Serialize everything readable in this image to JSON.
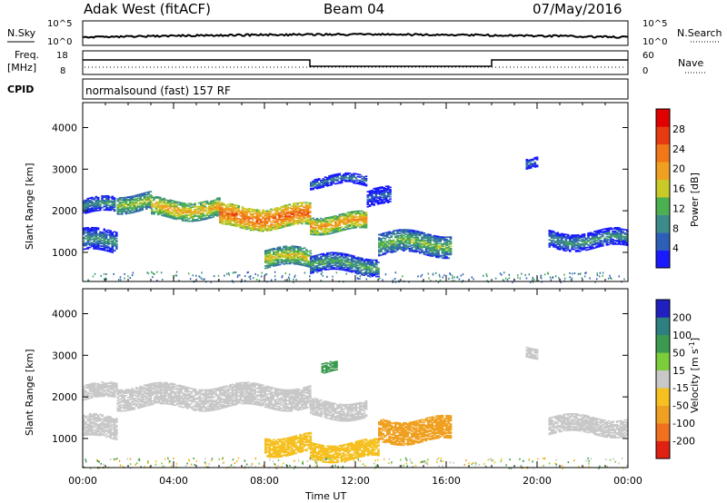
{
  "header": {
    "site": "Adak West (fitACF)",
    "beam": "Beam 04",
    "date": "07/May/2016"
  },
  "panel_labels": {
    "nsky": "N.Sky",
    "nsearch": "N.Search",
    "freq_line1": "Freq.",
    "freq_line2": "[MHz]",
    "nave": "Nave",
    "cpid": "CPID",
    "cpid_text": "normalsound (fast) 157 RF"
  },
  "noise_axis": {
    "left_ticks": [
      "10^5",
      "10^0"
    ],
    "right_ticks": [
      "10^5",
      "10^0"
    ]
  },
  "freq_axis": {
    "left_ticks": [
      "18",
      "8"
    ],
    "right_ticks": [
      "60",
      "0"
    ]
  },
  "chart_data": [
    {
      "type": "heatmap",
      "name": "power",
      "ylabel": "Slant Range [km]",
      "y_ticks": [
        1000,
        2000,
        3000,
        4000
      ],
      "ylim": [
        300,
        4600
      ],
      "x_ticks": [
        "00:00",
        "04:00",
        "08:00",
        "12:00",
        "16:00",
        "20:00",
        "00:00"
      ],
      "xlim_hours": [
        0,
        24
      ],
      "colorbar": {
        "label": "Power [dB]",
        "ticks": [
          "4",
          "8",
          "12",
          "16",
          "20",
          "24",
          "28"
        ],
        "colors": [
          "#1a1aff",
          "#2e5fb8",
          "#3c8a8a",
          "#4caf50",
          "#c9c928",
          "#f0a020",
          "#f07818",
          "#e83a10",
          "#e00000"
        ]
      },
      "bands": [
        {
          "t0": 0.0,
          "t1": 1.4,
          "r_center": 2100,
          "width": 180,
          "value": 10
        },
        {
          "t0": 0.0,
          "t1": 1.5,
          "r_center": 1250,
          "width": 260,
          "value": 10
        },
        {
          "t0": 1.5,
          "t1": 3.0,
          "r_center": 2200,
          "width": 200,
          "value": 16
        },
        {
          "t0": 3.0,
          "t1": 6.0,
          "r_center": 2050,
          "width": 220,
          "value": 20
        },
        {
          "t0": 6.0,
          "t1": 10.0,
          "r_center": 1850,
          "width": 260,
          "value": 26
        },
        {
          "t0": 8.0,
          "t1": 10.0,
          "r_center": 850,
          "width": 220,
          "value": 18
        },
        {
          "t0": 10.0,
          "t1": 12.5,
          "r_center": 1700,
          "width": 200,
          "value": 22
        },
        {
          "t0": 10.0,
          "t1": 12.5,
          "r_center": 2700,
          "width": 120,
          "value": 8
        },
        {
          "t0": 10.0,
          "t1": 13.0,
          "r_center": 700,
          "width": 200,
          "value": 12
        },
        {
          "t0": 13.0,
          "t1": 16.2,
          "r_center": 1200,
          "width": 260,
          "value": 14
        },
        {
          "t0": 12.5,
          "t1": 13.5,
          "r_center": 2300,
          "width": 200,
          "value": 6
        },
        {
          "t0": 19.5,
          "t1": 20.0,
          "r_center": 3100,
          "width": 120,
          "value": 8
        },
        {
          "t0": 20.5,
          "t1": 24.0,
          "r_center": 1300,
          "width": 200,
          "value": 10
        }
      ]
    },
    {
      "type": "heatmap",
      "name": "velocity",
      "ylabel": "Slant Range [km]",
      "y_ticks": [
        1000,
        2000,
        3000,
        4000
      ],
      "ylim": [
        300,
        4600
      ],
      "x_ticks": [
        "00:00",
        "04:00",
        "08:00",
        "12:00",
        "16:00",
        "20:00",
        "00:00"
      ],
      "xlabel": "Time UT",
      "xlim_hours": [
        0,
        24
      ],
      "colorbar": {
        "label": "Velocity [m s^-1]",
        "ticks": [
          "200",
          "100",
          "50",
          "15",
          "-15",
          "-50",
          "-100",
          "-200"
        ],
        "colors": [
          "#2020c0",
          "#2e7f7f",
          "#3c9a50",
          "#7ccd3c",
          "#c8c8c8",
          "#f5c020",
          "#f0a020",
          "#f07020",
          "#e02010"
        ]
      },
      "bands": [
        {
          "t0": 0.0,
          "t1": 1.5,
          "r_center": 2100,
          "width": 180,
          "value": 0
        },
        {
          "t0": 0.0,
          "t1": 1.5,
          "r_center": 1250,
          "width": 260,
          "value": 0
        },
        {
          "t0": 1.5,
          "t1": 10.0,
          "r_center": 2000,
          "width": 260,
          "value": 0
        },
        {
          "t0": 8.0,
          "t1": 10.0,
          "r_center": 850,
          "width": 220,
          "value": -40
        },
        {
          "t0": 10.0,
          "t1": 12.5,
          "r_center": 1700,
          "width": 200,
          "value": 0
        },
        {
          "t0": 10.0,
          "t1": 13.0,
          "r_center": 700,
          "width": 200,
          "value": -30
        },
        {
          "t0": 13.0,
          "t1": 16.2,
          "r_center": 1200,
          "width": 280,
          "value": -80
        },
        {
          "t0": 10.5,
          "t1": 11.2,
          "r_center": 2700,
          "width": 120,
          "value": 40
        },
        {
          "t0": 19.5,
          "t1": 20.0,
          "r_center": 3100,
          "width": 120,
          "value": 0
        },
        {
          "t0": 20.5,
          "t1": 24.0,
          "r_center": 1300,
          "width": 200,
          "value": 0
        }
      ]
    }
  ],
  "freq_trace": [
    {
      "t0": 0.0,
      "t1": 10.0,
      "level": "high"
    },
    {
      "t0": 10.0,
      "t1": 18.0,
      "level": "low"
    },
    {
      "t0": 18.0,
      "t1": 24.0,
      "level": "high"
    }
  ]
}
